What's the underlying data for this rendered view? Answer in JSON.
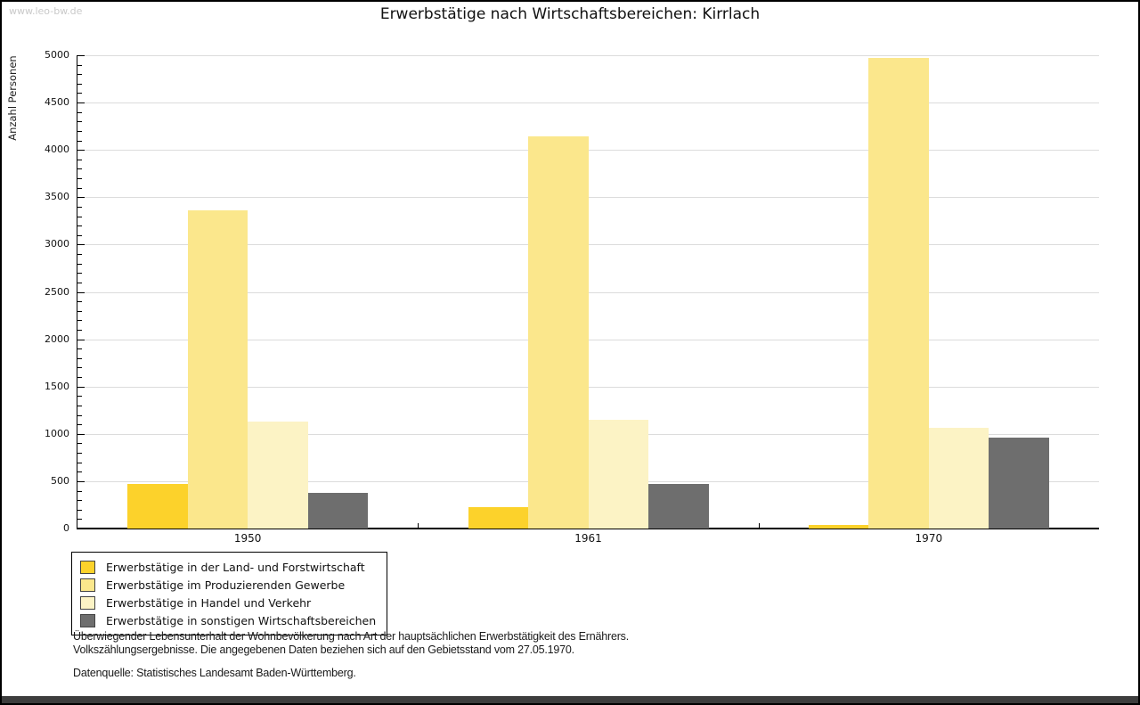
{
  "watermark": "www.leo-bw.de",
  "title": "Erwerbstätige nach Wirtschaftsbereichen: Kirrlach",
  "chart_data": {
    "type": "bar",
    "title": "Erwerbstätige nach Wirtschaftsbereichen: Kirrlach",
    "xlabel": "",
    "ylabel": "Anzahl Personen",
    "categories": [
      "1950",
      "1961",
      "1970"
    ],
    "series": [
      {
        "name": "Erwerbstätige in der Land- und Forstwirtschaft",
        "color": "#FCD22B",
        "values": [
          470,
          230,
          40
        ]
      },
      {
        "name": "Erwerbstätige im Produzierenden Gewerbe",
        "color": "#FBE78C",
        "values": [
          3360,
          4140,
          4970
        ]
      },
      {
        "name": "Erwerbstätige in Handel und Verkehr",
        "color": "#FCF3C5",
        "values": [
          1130,
          1150,
          1060
        ]
      },
      {
        "name": "Erwerbstätige in sonstigen Wirtschaftsbereichen",
        "color": "#6E6E6E",
        "values": [
          380,
          470,
          960
        ]
      }
    ],
    "ylim": [
      0,
      5000
    ],
    "ytick_step": 500,
    "minor_tick_step": 100,
    "grid": "horizontal-major-gridlines",
    "legend_position": "bottom-left",
    "axis_color": "#000000",
    "gridline_color": "#dcdcdc"
  },
  "footer": {
    "line1": "Überwiegender Lebensunterhalt der Wohnbevölkerung nach Art der hauptsächlichen Erwerbstätigkeit des Ernährers.",
    "line2": "Volkszählungsergebnisse. Die angegebenen Daten beziehen sich auf den Gebietsstand vom 27.05.1970.",
    "source": "Datenquelle: Statistisches Landesamt Baden-Württemberg."
  }
}
